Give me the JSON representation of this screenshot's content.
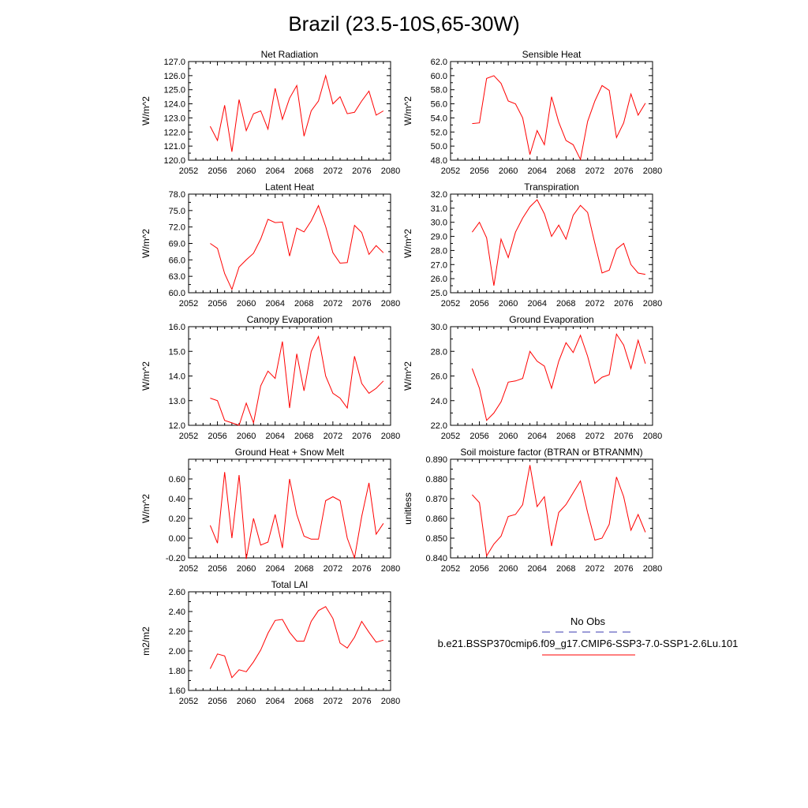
{
  "title": "Brazil (23.5-10S,65-30W)",
  "legend": {
    "obs_label": "No Obs",
    "obs_color": "#3b3bb0",
    "case_label": "b.e21.BSSP370cmip6.f09_g17.CMIP6-SSP3-7.0-SSP1-2.6Lu.101",
    "case_color": "#ff0000"
  },
  "chart_data": [
    {
      "type": "line",
      "title": "Net Radiation",
      "ylabel": "W/m^2",
      "xlim": [
        2052,
        2080
      ],
      "ylim": [
        120.0,
        127.0
      ],
      "xticks": [
        "2052",
        "2056",
        "2060",
        "2064",
        "2068",
        "2072",
        "2076",
        "2080"
      ],
      "yticks": [
        "120.0",
        "121.0",
        "122.0",
        "123.0",
        "124.0",
        "125.0",
        "126.0",
        "127.0"
      ],
      "x": [
        2055,
        2056,
        2057,
        2058,
        2059,
        2060,
        2061,
        2062,
        2063,
        2064,
        2065,
        2066,
        2067,
        2068,
        2069,
        2070,
        2071,
        2072,
        2073,
        2074,
        2075,
        2076,
        2077,
        2078,
        2079
      ],
      "values": [
        122.4,
        121.4,
        123.9,
        120.6,
        124.3,
        122.1,
        123.3,
        123.5,
        122.2,
        125.1,
        122.9,
        124.4,
        125.3,
        121.7,
        123.5,
        124.2,
        126.0,
        124.0,
        124.5,
        123.3,
        123.4,
        124.2,
        124.9,
        123.2,
        123.5
      ]
    },
    {
      "type": "line",
      "title": "Sensible Heat",
      "ylabel": "W/m^2",
      "xlim": [
        2052,
        2080
      ],
      "ylim": [
        48.0,
        62.0
      ],
      "xticks": [
        "2052",
        "2056",
        "2060",
        "2064",
        "2068",
        "2072",
        "2076",
        "2080"
      ],
      "yticks": [
        "48.0",
        "50.0",
        "52.0",
        "54.0",
        "56.0",
        "58.0",
        "60.0",
        "62.0"
      ],
      "x": [
        2055,
        2056,
        2057,
        2058,
        2059,
        2060,
        2061,
        2062,
        2063,
        2064,
        2065,
        2066,
        2067,
        2068,
        2069,
        2070,
        2071,
        2072,
        2073,
        2074,
        2075,
        2076,
        2077,
        2078,
        2079
      ],
      "values": [
        53.2,
        53.3,
        59.6,
        60.0,
        58.9,
        56.4,
        56.0,
        54.0,
        48.8,
        52.2,
        50.2,
        57.0,
        53.4,
        50.8,
        50.2,
        48.1,
        53.5,
        56.4,
        58.6,
        57.9,
        51.2,
        53.3,
        57.4,
        54.4,
        56.1
      ]
    },
    {
      "type": "line",
      "title": "Latent Heat",
      "ylabel": "W/m^2",
      "xlim": [
        2052,
        2080
      ],
      "ylim": [
        60.0,
        78.0
      ],
      "xticks": [
        "2052",
        "2056",
        "2060",
        "2064",
        "2068",
        "2072",
        "2076",
        "2080"
      ],
      "yticks": [
        "60.0",
        "63.0",
        "66.0",
        "69.0",
        "72.0",
        "75.0",
        "78.0"
      ],
      "x": [
        2055,
        2056,
        2057,
        2058,
        2059,
        2060,
        2061,
        2062,
        2063,
        2064,
        2065,
        2066,
        2067,
        2068,
        2069,
        2070,
        2071,
        2072,
        2073,
        2074,
        2075,
        2076,
        2077,
        2078,
        2079
      ],
      "values": [
        69.0,
        68.1,
        63.5,
        60.6,
        64.7,
        66.0,
        67.2,
        69.8,
        73.4,
        72.8,
        72.9,
        66.7,
        71.8,
        71.1,
        73.1,
        75.9,
        72.1,
        67.3,
        65.4,
        65.5,
        72.3,
        71.0,
        67.0,
        68.6,
        67.3
      ]
    },
    {
      "type": "line",
      "title": "Transpiration",
      "ylabel": "W/m^2",
      "xlim": [
        2052,
        2080
      ],
      "ylim": [
        25.0,
        32.0
      ],
      "xticks": [
        "2052",
        "2056",
        "2060",
        "2064",
        "2068",
        "2072",
        "2076",
        "2080"
      ],
      "yticks": [
        "25.0",
        "26.0",
        "27.0",
        "28.0",
        "29.0",
        "30.0",
        "31.0",
        "32.0"
      ],
      "x": [
        2055,
        2056,
        2057,
        2058,
        2059,
        2060,
        2061,
        2062,
        2063,
        2064,
        2065,
        2066,
        2067,
        2068,
        2069,
        2070,
        2071,
        2072,
        2073,
        2074,
        2075,
        2076,
        2077,
        2078,
        2079
      ],
      "values": [
        29.3,
        30.0,
        28.9,
        25.5,
        28.8,
        27.5,
        29.3,
        30.3,
        31.1,
        31.6,
        30.6,
        29.0,
        29.8,
        28.8,
        30.5,
        31.2,
        30.7,
        28.5,
        26.4,
        26.6,
        28.1,
        28.5,
        27.0,
        26.4,
        26.3
      ]
    },
    {
      "type": "line",
      "title": "Canopy Evaporation",
      "ylabel": "W/m^2",
      "xlim": [
        2052,
        2080
      ],
      "ylim": [
        12.0,
        16.0
      ],
      "xticks": [
        "2052",
        "2056",
        "2060",
        "2064",
        "2068",
        "2072",
        "2076",
        "2080"
      ],
      "yticks": [
        "12.0",
        "13.0",
        "14.0",
        "15.0",
        "16.0"
      ],
      "x": [
        2055,
        2056,
        2057,
        2058,
        2059,
        2060,
        2061,
        2062,
        2063,
        2064,
        2065,
        2066,
        2067,
        2068,
        2069,
        2070,
        2071,
        2072,
        2073,
        2074,
        2075,
        2076,
        2077,
        2078,
        2079
      ],
      "values": [
        13.1,
        13.0,
        12.2,
        12.1,
        12.0,
        12.9,
        12.1,
        13.6,
        14.2,
        13.9,
        15.4,
        12.7,
        14.9,
        13.4,
        15.0,
        15.6,
        14.0,
        13.3,
        13.1,
        12.7,
        14.8,
        13.7,
        13.3,
        13.5,
        13.8
      ]
    },
    {
      "type": "line",
      "title": "Ground Evaporation",
      "ylabel": "W/m^2",
      "xlim": [
        2052,
        2080
      ],
      "ylim": [
        22.0,
        30.0
      ],
      "xticks": [
        "2052",
        "2056",
        "2060",
        "2064",
        "2068",
        "2072",
        "2076",
        "2080"
      ],
      "yticks": [
        "22.0",
        "24.0",
        "26.0",
        "28.0",
        "30.0"
      ],
      "x": [
        2055,
        2056,
        2057,
        2058,
        2059,
        2060,
        2061,
        2062,
        2063,
        2064,
        2065,
        2066,
        2067,
        2068,
        2069,
        2070,
        2071,
        2072,
        2073,
        2074,
        2075,
        2076,
        2077,
        2078,
        2079
      ],
      "values": [
        26.6,
        25.0,
        22.4,
        23.0,
        23.9,
        25.5,
        25.6,
        25.8,
        28.0,
        27.2,
        26.8,
        25.0,
        27.2,
        28.7,
        27.9,
        29.3,
        27.6,
        25.4,
        25.9,
        26.1,
        29.4,
        28.5,
        26.6,
        28.9,
        27.0
      ]
    },
    {
      "type": "line",
      "title": "Ground Heat + Snow Melt",
      "ylabel": "W/m^2",
      "xlim": [
        2052,
        2080
      ],
      "ylim": [
        -0.2,
        0.8
      ],
      "xticks": [
        "2052",
        "2056",
        "2060",
        "2064",
        "2068",
        "2072",
        "2076",
        "2080"
      ],
      "yticks": [
        "-0.20",
        "0.00",
        "0.20",
        "0.40",
        "0.60"
      ],
      "x": [
        2055,
        2056,
        2057,
        2058,
        2059,
        2060,
        2061,
        2062,
        2063,
        2064,
        2065,
        2066,
        2067,
        2068,
        2069,
        2070,
        2071,
        2072,
        2073,
        2074,
        2075,
        2076,
        2077,
        2078,
        2079
      ],
      "values": [
        0.13,
        -0.05,
        0.67,
        0.0,
        0.64,
        -0.21,
        0.2,
        -0.07,
        -0.04,
        0.24,
        -0.1,
        0.6,
        0.24,
        0.02,
        -0.01,
        -0.01,
        0.38,
        0.42,
        0.38,
        0.0,
        -0.2,
        0.22,
        0.56,
        0.04,
        0.15
      ]
    },
    {
      "type": "line",
      "title": "Soil moisture factor (BTRAN or BTRANMN)",
      "ylabel": "unitless",
      "xlim": [
        2052,
        2080
      ],
      "ylim": [
        0.84,
        0.89
      ],
      "xticks": [
        "2052",
        "2056",
        "2060",
        "2064",
        "2068",
        "2072",
        "2076",
        "2080"
      ],
      "yticks": [
        "0.840",
        "0.850",
        "0.860",
        "0.870",
        "0.880",
        "0.890"
      ],
      "x": [
        2055,
        2056,
        2057,
        2058,
        2059,
        2060,
        2061,
        2062,
        2063,
        2064,
        2065,
        2066,
        2067,
        2068,
        2069,
        2070,
        2071,
        2072,
        2073,
        2074,
        2075,
        2076,
        2077,
        2078,
        2079
      ],
      "values": [
        0.872,
        0.868,
        0.841,
        0.847,
        0.851,
        0.861,
        0.862,
        0.867,
        0.887,
        0.866,
        0.871,
        0.846,
        0.863,
        0.867,
        0.873,
        0.879,
        0.863,
        0.849,
        0.85,
        0.857,
        0.881,
        0.871,
        0.854,
        0.862,
        0.853
      ]
    },
    {
      "type": "line",
      "title": "Total LAI",
      "ylabel": "m2/m2",
      "xlim": [
        2052,
        2080
      ],
      "ylim": [
        1.6,
        2.6
      ],
      "xticks": [
        "2052",
        "2056",
        "2060",
        "2064",
        "2068",
        "2072",
        "2076",
        "2080"
      ],
      "yticks": [
        "1.60",
        "1.80",
        "2.00",
        "2.20",
        "2.40",
        "2.60"
      ],
      "x": [
        2055,
        2056,
        2057,
        2058,
        2059,
        2060,
        2061,
        2062,
        2063,
        2064,
        2065,
        2066,
        2067,
        2068,
        2069,
        2070,
        2071,
        2072,
        2073,
        2074,
        2075,
        2076,
        2077,
        2078,
        2079
      ],
      "values": [
        1.82,
        1.97,
        1.95,
        1.73,
        1.81,
        1.79,
        1.89,
        2.01,
        2.18,
        2.31,
        2.32,
        2.19,
        2.1,
        2.1,
        2.3,
        2.41,
        2.45,
        2.33,
        2.08,
        2.03,
        2.14,
        2.3,
        2.19,
        2.09,
        2.11
      ]
    }
  ]
}
